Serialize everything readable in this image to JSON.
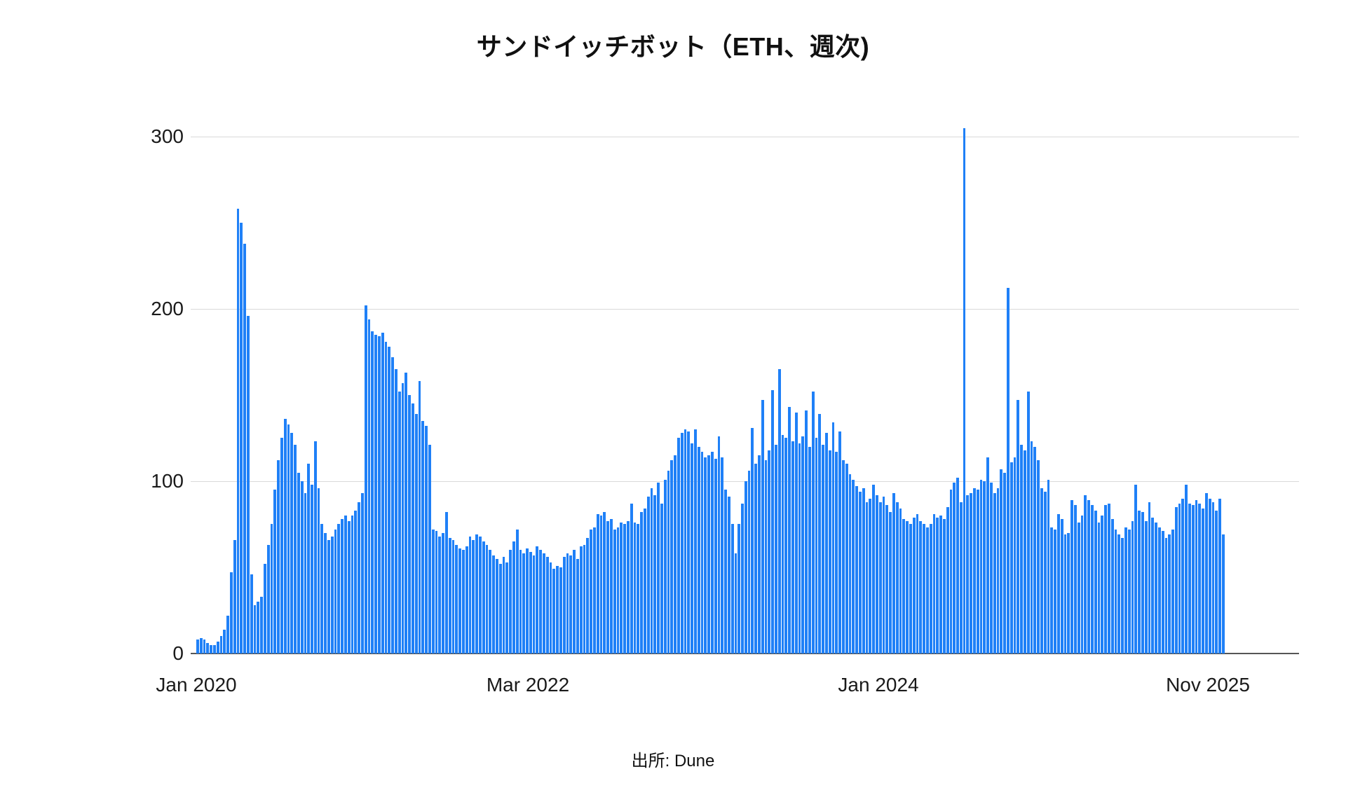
{
  "title": "サンドイッチボット（ETH、週次)",
  "source": "出所: Dune",
  "colors": {
    "bar": "#1F80F7",
    "gridline": "#d9d9d9",
    "axis_line": "#565656",
    "text": "#1a1a1a"
  },
  "chart_data": {
    "type": "bar",
    "title": "サンドイッチボット（ETH、週次)",
    "subtitle": "",
    "xlabel": "",
    "ylabel": "",
    "legend": [],
    "grid": "horizontal",
    "ylim": [
      0,
      318
    ],
    "yticks": [
      0,
      100,
      200,
      300
    ],
    "x_tick_labels": [
      "Jan 2020",
      "Mar 2022",
      "Jan 2024",
      "Nov 2025"
    ],
    "x_tick_positions": [
      0.0,
      0.323,
      0.664,
      0.985
    ],
    "x_unit": "week",
    "values": [
      8,
      9,
      8,
      6,
      5,
      5,
      7,
      10,
      14,
      22,
      47,
      66,
      258,
      250,
      238,
      196,
      46,
      28,
      30,
      33,
      52,
      63,
      75,
      95,
      112,
      125,
      136,
      133,
      128,
      121,
      105,
      100,
      93,
      110,
      98,
      123,
      96,
      75,
      70,
      66,
      68,
      72,
      75,
      78,
      80,
      77,
      80,
      83,
      88,
      93,
      202,
      194,
      187,
      185,
      184,
      186,
      181,
      178,
      172,
      165,
      152,
      157,
      163,
      150,
      145,
      139,
      158,
      135,
      132,
      121,
      72,
      71,
      68,
      70,
      82,
      67,
      66,
      63,
      61,
      60,
      62,
      68,
      66,
      69,
      68,
      65,
      63,
      60,
      57,
      55,
      52,
      56,
      53,
      60,
      65,
      72,
      60,
      58,
      61,
      59,
      57,
      62,
      60,
      58,
      56,
      53,
      49,
      51,
      50,
      56,
      58,
      57,
      60,
      55,
      62,
      63,
      67,
      72,
      73,
      81,
      80,
      82,
      77,
      78,
      72,
      73,
      76,
      75,
      77,
      87,
      76,
      75,
      82,
      84,
      91,
      96,
      92,
      99,
      87,
      101,
      106,
      112,
      115,
      125,
      128,
      130,
      129,
      122,
      130,
      120,
      117,
      114,
      115,
      117,
      113,
      126,
      114,
      95,
      91,
      75,
      58,
      75,
      87,
      100,
      106,
      131,
      110,
      115,
      147,
      112,
      118,
      153,
      121,
      165,
      127,
      125,
      143,
      123,
      140,
      122,
      126,
      141,
      120,
      152,
      125,
      139,
      121,
      128,
      118,
      134,
      117,
      129,
      112,
      110,
      104,
      101,
      97,
      94,
      96,
      88,
      90,
      98,
      92,
      88,
      91,
      86,
      82,
      93,
      88,
      84,
      78,
      77,
      75,
      79,
      81,
      77,
      75,
      73,
      75,
      81,
      79,
      80,
      78,
      85,
      95,
      99,
      102,
      88,
      305,
      92,
      93,
      96,
      95,
      101,
      100,
      114,
      99,
      93,
      96,
      107,
      105,
      212,
      111,
      114,
      147,
      121,
      118,
      152,
      123,
      120,
      112,
      96,
      94,
      101,
      73,
      72,
      81,
      78,
      69,
      70,
      89,
      86,
      76,
      80,
      92,
      89,
      86,
      83,
      76,
      80,
      86,
      87,
      78,
      72,
      69,
      67,
      73,
      72,
      77,
      98,
      83,
      82,
      77,
      88,
      79,
      76,
      73,
      71,
      67,
      69,
      72,
      85,
      87,
      90,
      98,
      87,
      86,
      89,
      87,
      84,
      93,
      90,
      88,
      83,
      90,
      69
    ]
  }
}
